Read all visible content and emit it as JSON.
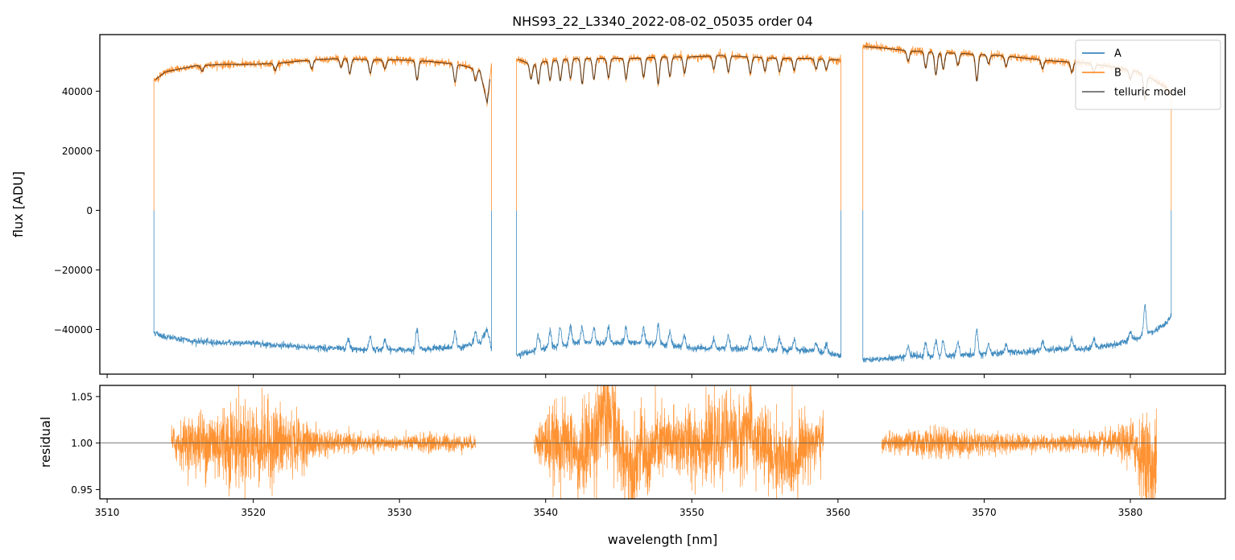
{
  "chart_data": {
    "type": "line",
    "title": "NHS93_22_L3340_2022-08-02_05035  order 04",
    "xlabel": "wavelength [nm]",
    "xlim": [
      3509.5,
      3586.5
    ],
    "x_ticks": [
      3510,
      3520,
      3530,
      3540,
      3550,
      3560,
      3570,
      3580
    ],
    "x_tick_labels": [
      "3510",
      "3520",
      "3530",
      "3540",
      "3550",
      "3560",
      "3570",
      "3580"
    ],
    "colors": {
      "A": "#1f77b4",
      "B": "#ff7f0e",
      "telluric": "#4d3319",
      "residual": "#ff7f0e",
      "refline": "#555555"
    },
    "top": {
      "ylabel": "flux [ADU]",
      "ylim": [
        -55000,
        59000
      ],
      "y_ticks": [
        -40000,
        -20000,
        0,
        20000,
        40000
      ],
      "y_tick_labels": [
        "−40000",
        "−20000",
        "0",
        "20000",
        "40000"
      ],
      "legend": {
        "position": "top-right",
        "entries": [
          "A",
          "B",
          "telluric model"
        ]
      },
      "segments": [
        {
          "x_start": 3513.2,
          "x_end": 3536.3,
          "A": [
            [
              3513.2,
              -41000
            ],
            [
              3514.0,
              -42500
            ],
            [
              3516.0,
              -44000
            ],
            [
              3518.0,
              -44500
            ],
            [
              3520.0,
              -44500
            ],
            [
              3522.0,
              -45500
            ],
            [
              3524.0,
              -46000
            ],
            [
              3526.0,
              -46500
            ],
            [
              3528.0,
              -46800
            ],
            [
              3530.0,
              -46800
            ],
            [
              3532.0,
              -46500
            ],
            [
              3534.0,
              -46000
            ],
            [
              3535.5,
              -44500
            ],
            [
              3536.0,
              -40000
            ],
            [
              3536.3,
              -47000
            ]
          ],
          "B": [
            [
              3513.2,
              43500
            ],
            [
              3514.0,
              46500
            ],
            [
              3516.0,
              48500
            ],
            [
              3518.0,
              49000
            ],
            [
              3520.0,
              49000
            ],
            [
              3522.0,
              49500
            ],
            [
              3524.0,
              50500
            ],
            [
              3526.0,
              51000
            ],
            [
              3528.0,
              50500
            ],
            [
              3530.0,
              50500
            ],
            [
              3532.0,
              50000
            ],
            [
              3534.0,
              49000
            ],
            [
              3535.5,
              47000
            ],
            [
              3536.0,
              36000
            ],
            [
              3536.3,
              49000
            ]
          ],
          "A_features": [
            [
              3526.5,
              3500
            ],
            [
              3528.0,
              4500
            ],
            [
              3529.0,
              3500
            ],
            [
              3531.2,
              6500
            ],
            [
              3533.8,
              5500
            ],
            [
              3535.2,
              4000
            ]
          ],
          "B_features": [
            [
              3516.5,
              -2000
            ],
            [
              3521.5,
              -2500
            ],
            [
              3524.0,
              -3000
            ],
            [
              3526.0,
              -3000
            ],
            [
              3526.6,
              -5000
            ],
            [
              3528.0,
              -4500
            ],
            [
              3529.0,
              -3000
            ],
            [
              3531.2,
              -6500
            ],
            [
              3533.8,
              -6000
            ],
            [
              3535.2,
              -4000
            ]
          ]
        },
        {
          "x_start": 3538.0,
          "x_end": 3560.2,
          "A": [
            [
              3538.0,
              -48500
            ],
            [
              3539.0,
              -47500
            ],
            [
              3540.0,
              -46500
            ],
            [
              3542.0,
              -44500
            ],
            [
              3544.0,
              -44500
            ],
            [
              3546.0,
              -44500
            ],
            [
              3548.0,
              -45000
            ],
            [
              3550.0,
              -46500
            ],
            [
              3552.0,
              -46500
            ],
            [
              3554.0,
              -46500
            ],
            [
              3556.0,
              -47000
            ],
            [
              3558.0,
              -47000
            ],
            [
              3560.0,
              -48500
            ]
          ],
          "B": [
            [
              3538.0,
              51000
            ],
            [
              3539.0,
              49000
            ],
            [
              3540.0,
              50000
            ],
            [
              3542.0,
              51000
            ],
            [
              3544.0,
              51000
            ],
            [
              3546.0,
              51000
            ],
            [
              3548.0,
              51500
            ],
            [
              3550.0,
              51500
            ],
            [
              3552.0,
              52000
            ],
            [
              3554.0,
              51500
            ],
            [
              3556.0,
              51000
            ],
            [
              3558.0,
              51000
            ],
            [
              3560.0,
              50500
            ]
          ],
          "A_features": [
            [
              3539.5,
              5000
            ],
            [
              3540.3,
              5500
            ],
            [
              3541.0,
              6000
            ],
            [
              3541.7,
              6000
            ],
            [
              3542.5,
              5500
            ],
            [
              3543.3,
              5000
            ],
            [
              3544.3,
              5500
            ],
            [
              3545.5,
              5000
            ],
            [
              3546.7,
              5000
            ],
            [
              3547.7,
              6500
            ],
            [
              3548.5,
              4500
            ],
            [
              3549.5,
              4500
            ],
            [
              3551.5,
              3500
            ],
            [
              3552.5,
              4500
            ],
            [
              3554.0,
              4500
            ],
            [
              3555.0,
              3500
            ],
            [
              3556.0,
              4000
            ],
            [
              3557.0,
              3500
            ],
            [
              3558.5,
              3000
            ],
            [
              3559.2,
              3000
            ]
          ],
          "B_features": [
            [
              3539.0,
              -5000
            ],
            [
              3539.5,
              -7000
            ],
            [
              3540.3,
              -6500
            ],
            [
              3541.0,
              -7000
            ],
            [
              3541.7,
              -6500
            ],
            [
              3542.5,
              -8500
            ],
            [
              3543.3,
              -7000
            ],
            [
              3544.3,
              -6500
            ],
            [
              3545.5,
              -7000
            ],
            [
              3546.7,
              -6500
            ],
            [
              3547.7,
              -9000
            ],
            [
              3548.5,
              -6500
            ],
            [
              3549.5,
              -5500
            ],
            [
              3551.5,
              -4500
            ],
            [
              3552.5,
              -5500
            ],
            [
              3554.0,
              -5500
            ],
            [
              3555.0,
              -4500
            ],
            [
              3556.0,
              -4500
            ],
            [
              3557.0,
              -4000
            ],
            [
              3558.5,
              -3500
            ],
            [
              3559.2,
              -3500
            ]
          ]
        },
        {
          "x_start": 3561.7,
          "x_end": 3582.8,
          "A": [
            [
              3561.7,
              -50000
            ],
            [
              3563.0,
              -50000
            ],
            [
              3565.0,
              -49000
            ],
            [
              3567.0,
              -49000
            ],
            [
              3569.0,
              -48500
            ],
            [
              3571.0,
              -48000
            ],
            [
              3573.0,
              -47500
            ],
            [
              3575.0,
              -46500
            ],
            [
              3577.0,
              -46500
            ],
            [
              3579.0,
              -45000
            ],
            [
              3580.5,
              -43000
            ],
            [
              3581.5,
              -41000
            ],
            [
              3582.5,
              -38000
            ],
            [
              3582.8,
              -35000
            ]
          ],
          "B": [
            [
              3561.7,
              55000
            ],
            [
              3563.0,
              54500
            ],
            [
              3565.0,
              53500
            ],
            [
              3567.0,
              53000
            ],
            [
              3569.0,
              52500
            ],
            [
              3571.0,
              52000
            ],
            [
              3573.0,
              51000
            ],
            [
              3575.0,
              50000
            ],
            [
              3577.0,
              49500
            ],
            [
              3579.0,
              48000
            ],
            [
              3580.5,
              46500
            ],
            [
              3581.5,
              44000
            ],
            [
              3582.5,
              41000
            ],
            [
              3582.8,
              39000
            ]
          ],
          "A_features": [
            [
              3564.8,
              3500
            ],
            [
              3566.0,
              4500
            ],
            [
              3566.7,
              5500
            ],
            [
              3567.2,
              5000
            ],
            [
              3568.2,
              4500
            ],
            [
              3569.5,
              8500
            ],
            [
              3570.3,
              3000
            ],
            [
              3571.5,
              3000
            ],
            [
              3574.0,
              3000
            ],
            [
              3576.0,
              3500
            ],
            [
              3577.5,
              3000
            ],
            [
              3580.0,
              3000
            ],
            [
              3581.0,
              10000
            ]
          ],
          "B_features": [
            [
              3564.8,
              -3500
            ],
            [
              3566.0,
              -5500
            ],
            [
              3566.7,
              -7500
            ],
            [
              3567.2,
              -5500
            ],
            [
              3568.2,
              -4000
            ],
            [
              3569.5,
              -9000
            ],
            [
              3570.3,
              -3000
            ],
            [
              3571.5,
              -3500
            ],
            [
              3574.0,
              -3000
            ],
            [
              3576.0,
              -3500
            ],
            [
              3577.5,
              -3000
            ],
            [
              3580.0,
              -3000
            ],
            [
              3581.0,
              -8000
            ]
          ]
        }
      ]
    },
    "bottom": {
      "ylabel": "residual",
      "ylim": [
        0.94,
        1.062
      ],
      "y_ticks": [
        0.95,
        1.0,
        1.05
      ],
      "y_tick_labels": [
        "0.95",
        "1.00",
        "1.05"
      ],
      "reference_line": 1.0,
      "segments": [
        {
          "x_start": 3514.4,
          "x_end": 3535.2,
          "envelope": [
            [
              3514.4,
              0.02
            ],
            [
              3516.0,
              0.035
            ],
            [
              3518.0,
              0.05
            ],
            [
              3520.0,
              0.05
            ],
            [
              3522.0,
              0.045
            ],
            [
              3524.0,
              0.02
            ],
            [
              3526.0,
              0.012
            ],
            [
              3528.0,
              0.01
            ],
            [
              3530.0,
              0.008
            ],
            [
              3532.0,
              0.012
            ],
            [
              3534.0,
              0.01
            ],
            [
              3535.2,
              0.008
            ]
          ]
        },
        {
          "x_start": 3539.2,
          "x_end": 3559.0,
          "envelope": [
            [
              3539.2,
              0.012
            ],
            [
              3540.0,
              0.04
            ],
            [
              3541.0,
              0.045
            ],
            [
              3542.0,
              0.045
            ],
            [
              3543.0,
              0.06
            ],
            [
              3544.0,
              0.06
            ],
            [
              3545.5,
              0.05
            ],
            [
              3547.0,
              0.045
            ],
            [
              3548.5,
              0.04
            ],
            [
              3550.0,
              0.045
            ],
            [
              3552.0,
              0.045
            ],
            [
              3554.0,
              0.05
            ],
            [
              3556.0,
              0.045
            ],
            [
              3557.5,
              0.04
            ],
            [
              3559.0,
              0.03
            ]
          ]
        },
        {
          "x_start": 3563.0,
          "x_end": 3581.8,
          "envelope": [
            [
              3563.0,
              0.01
            ],
            [
              3565.0,
              0.015
            ],
            [
              3567.0,
              0.018
            ],
            [
              3569.0,
              0.015
            ],
            [
              3571.0,
              0.012
            ],
            [
              3573.0,
              0.01
            ],
            [
              3575.0,
              0.01
            ],
            [
              3577.0,
              0.012
            ],
            [
              3579.0,
              0.015
            ],
            [
              3580.5,
              0.035
            ],
            [
              3581.2,
              0.06
            ],
            [
              3581.8,
              0.06
            ]
          ]
        }
      ],
      "offsets": [
        [
          3542.3,
          -0.02
        ],
        [
          3543.8,
          0.035
        ],
        [
          3544.5,
          0.03
        ],
        [
          3545.3,
          -0.015
        ],
        [
          3546.0,
          -0.025
        ],
        [
          3547.0,
          -0.02
        ],
        [
          3552.5,
          0.015
        ],
        [
          3553.8,
          0.02
        ],
        [
          3555.5,
          -0.015
        ],
        [
          3556.3,
          -0.025
        ],
        [
          3557.0,
          -0.02
        ],
        [
          3580.8,
          -0.015
        ],
        [
          3581.5,
          -0.03
        ]
      ]
    }
  }
}
